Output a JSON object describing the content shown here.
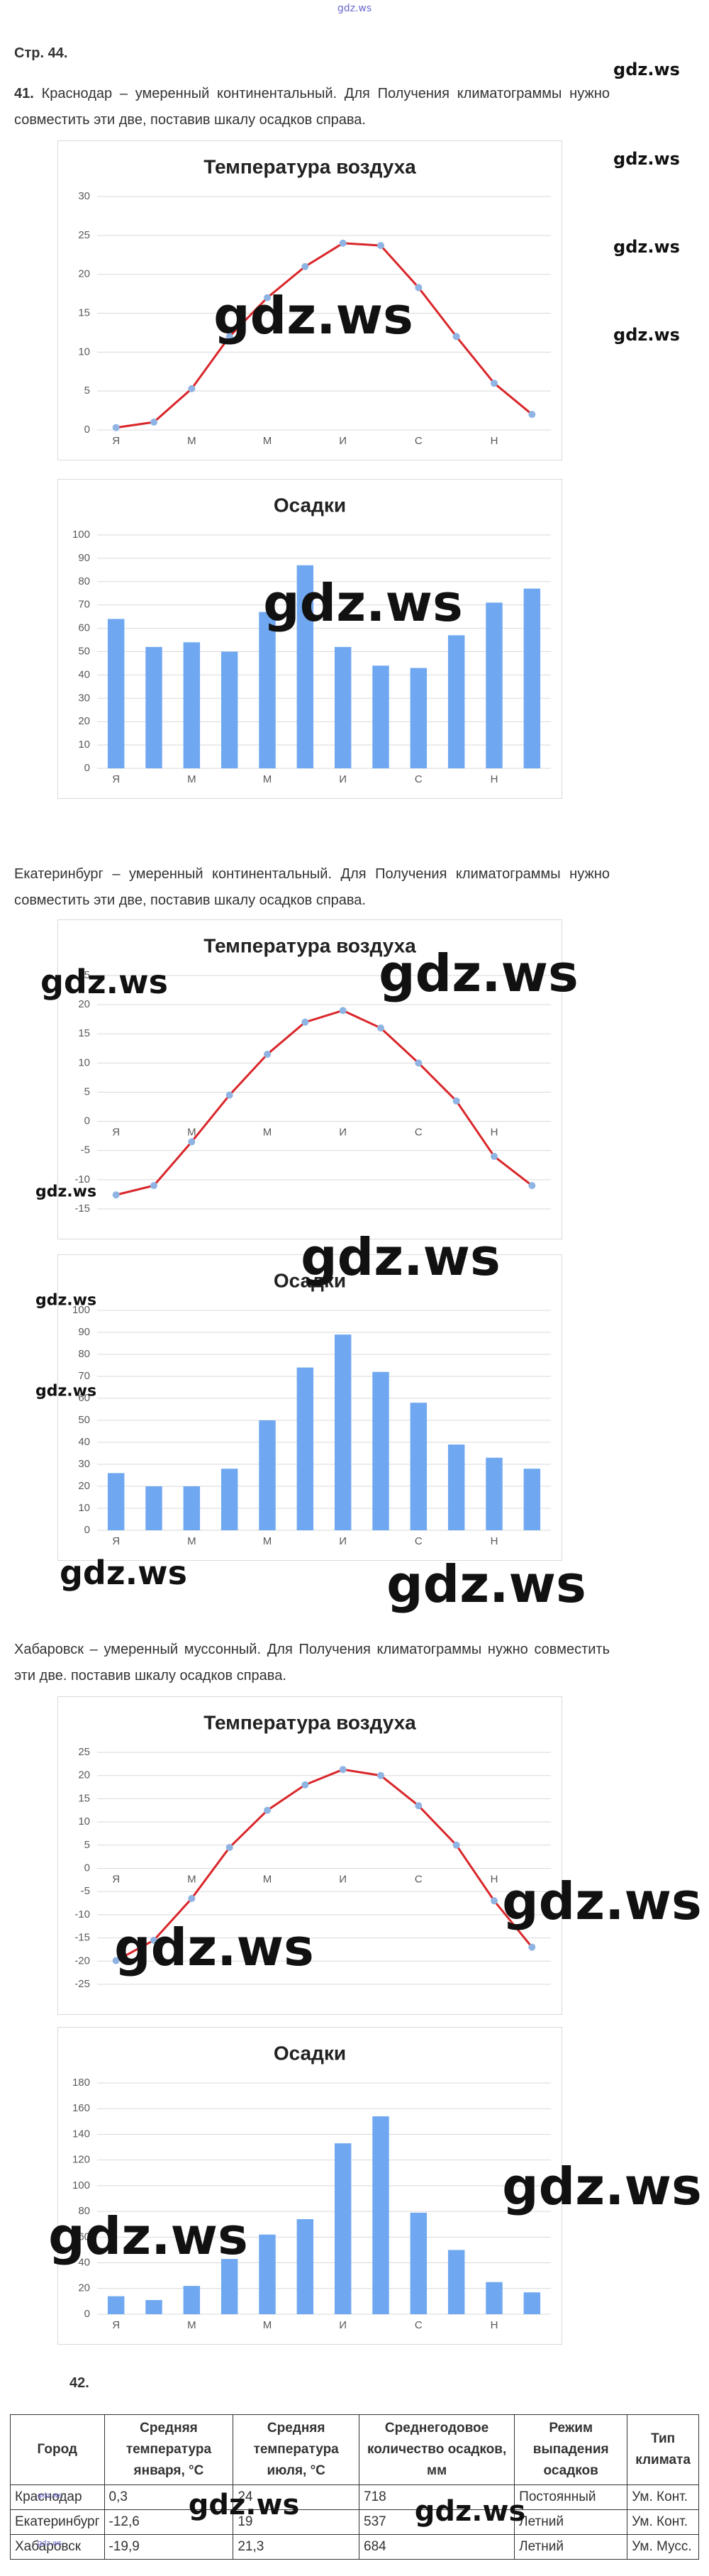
{
  "page": {
    "header": "Стр. 44.",
    "task41": {
      "number": "41.",
      "text": "Краснодар – умеренный континентальный. Для Получения климатограммы нужно совместить эти две, поставив шкалу осадков справа."
    },
    "ekb_text": "Екатеринбург – умеренный континентальный. Для Получения климатограммы нужно совместить эти две, поставив шкалу осадков справа.",
    "khab_text": "Хабаровск – умеренный муссонный. Для Получения климатограммы нужно совместить эти две. поставив шкалу осадков справа.",
    "task42": "42.",
    "watermarks": [
      "gdz.ws",
      "gdz.ws",
      "gdz.ws",
      "gdz.ws",
      "gdz.ws",
      "gdz.ws",
      "gdz.ws",
      "gdz.ws",
      "gdz.ws",
      "gdz.ws",
      "gdz.ws",
      "gdz.ws",
      "gdz.ws",
      "gdz.ws",
      "gdz.ws",
      "gdz.ws",
      "gdz.ws",
      "gdz.ws",
      "gdz.ws",
      "gdz.ws",
      "gdz.ws",
      "gdz.ws",
      "gdz.ws"
    ]
  },
  "chart_data": [
    {
      "type": "line",
      "title": "Температура воздуха",
      "categories": [
        "Я",
        null,
        "М",
        null,
        "М",
        null,
        "И",
        null,
        "С",
        null,
        "Н",
        null
      ],
      "values": [
        0.3,
        1,
        5.3,
        12,
        17,
        21,
        24,
        23.7,
        18.3,
        12,
        6,
        2
      ],
      "color": "#d9262a",
      "marker_color": "#8fb4e3",
      "ylim": [
        0,
        30
      ],
      "yticks": [
        0,
        5,
        10,
        15,
        20,
        25,
        30
      ],
      "grid": true
    },
    {
      "type": "bar",
      "title": "Осадки",
      "categories": [
        "Я",
        null,
        "М",
        null,
        "М",
        null,
        "И",
        null,
        "С",
        null,
        "Н",
        null
      ],
      "values": [
        64,
        52,
        54,
        50,
        67,
        87,
        52,
        44,
        43,
        57,
        71,
        77
      ],
      "color": "#6fa8f0",
      "ylim": [
        0,
        100
      ],
      "yticks": [
        0,
        10,
        20,
        30,
        40,
        50,
        60,
        70,
        80,
        90,
        100
      ],
      "grid": true
    },
    {
      "type": "line",
      "title": "Температура воздуха",
      "categories": [
        "Я",
        null,
        "М",
        null,
        "М",
        null,
        "И",
        null,
        "С",
        null,
        "Н",
        null
      ],
      "values": [
        -12.6,
        -11,
        -3.5,
        4.5,
        11.5,
        17,
        19,
        16,
        10,
        3.5,
        -6,
        -11
      ],
      "color": "#d9262a",
      "marker_color": "#8fb4e3",
      "ylim": [
        -15,
        25
      ],
      "yticks": [
        -15,
        -10,
        -5,
        0,
        5,
        10,
        15,
        20,
        25
      ],
      "grid": true
    },
    {
      "type": "bar",
      "title": "Осадки",
      "categories": [
        "Я",
        null,
        "М",
        null,
        "М",
        null,
        "И",
        null,
        "С",
        null,
        "Н",
        null
      ],
      "values": [
        26,
        20,
        20,
        28,
        50,
        74,
        89,
        72,
        58,
        39,
        33,
        28
      ],
      "color": "#6fa8f0",
      "ylim": [
        0,
        100
      ],
      "yticks": [
        0,
        10,
        20,
        30,
        40,
        50,
        60,
        70,
        80,
        90,
        100
      ],
      "grid": true
    },
    {
      "type": "line",
      "title": "Температура воздуха",
      "categories": [
        "Я",
        null,
        "М",
        null,
        "М",
        null,
        "И",
        null,
        "С",
        null,
        "Н",
        null
      ],
      "values": [
        -19.9,
        -15.5,
        -6.5,
        4.5,
        12.5,
        18,
        21.3,
        20,
        13.5,
        5,
        -7,
        -17
      ],
      "color": "#d9262a",
      "marker_color": "#8fb4e3",
      "ylim": [
        -25,
        25
      ],
      "yticks": [
        -25,
        -20,
        -15,
        -10,
        -5,
        0,
        5,
        10,
        15,
        20,
        25
      ],
      "grid": true
    },
    {
      "type": "bar",
      "title": "Осадки",
      "categories": [
        "Я",
        null,
        "М",
        null,
        "М",
        null,
        "И",
        null,
        "С",
        null,
        "Н",
        null
      ],
      "values": [
        14,
        11,
        22,
        43,
        62,
        74,
        133,
        154,
        79,
        50,
        25,
        17
      ],
      "color": "#6fa8f0",
      "ylim": [
        0,
        180
      ],
      "yticks": [
        0,
        20,
        40,
        60,
        80,
        100,
        120,
        140,
        160,
        180
      ],
      "grid": true
    }
  ],
  "table": {
    "header": [
      "Город",
      "Средняя температура января, °C",
      "Средняя температура июля, °C",
      "Среднегодовое количество осадков, мм",
      "Режим выпадения осадков",
      "Тип климата"
    ],
    "rows": [
      [
        "Краснодар",
        "0,3",
        "24",
        "718",
        "Постоянный",
        "Ум. Конт."
      ],
      [
        "Екатеринбург",
        "-12,6",
        "19",
        "537",
        "Летний",
        "Ум. Конт."
      ],
      [
        "Хабаровск",
        "-19,9",
        "21,3",
        "684",
        "Летний",
        "Ум. Мусс."
      ]
    ]
  }
}
